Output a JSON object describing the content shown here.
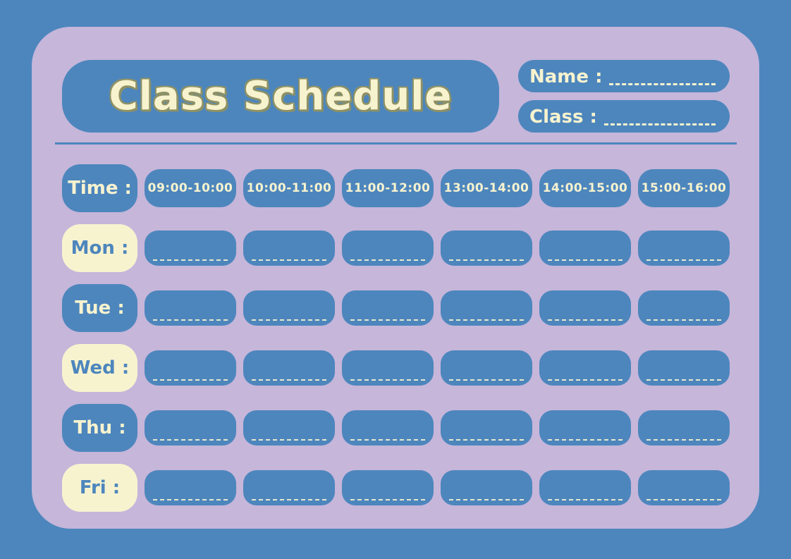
{
  "colors": {
    "canvas_blue": "#4d86bd",
    "card_lavender": "#c5b6da",
    "pill_blue": "#4d86bd",
    "cream": "#f8f3cf",
    "title_outline_olive": "#8e9165"
  },
  "header": {
    "title": "Class Schedule",
    "fields": [
      {
        "label": "Name :",
        "value": ""
      },
      {
        "label": "Class :",
        "value": ""
      }
    ]
  },
  "schedule": {
    "time_label": "Time :",
    "time_slots": [
      "09:00-10:00",
      "10:00-11:00",
      "11:00-12:00",
      "13:00-14:00",
      "14:00-15:00",
      "15:00-16:00"
    ],
    "days": [
      {
        "label": "Mon :",
        "variant": "cream"
      },
      {
        "label": "Tue :",
        "variant": "blue"
      },
      {
        "label": "Wed :",
        "variant": "cream"
      },
      {
        "label": "Thu :",
        "variant": "blue"
      },
      {
        "label": "Fri :",
        "variant": "cream"
      }
    ]
  }
}
